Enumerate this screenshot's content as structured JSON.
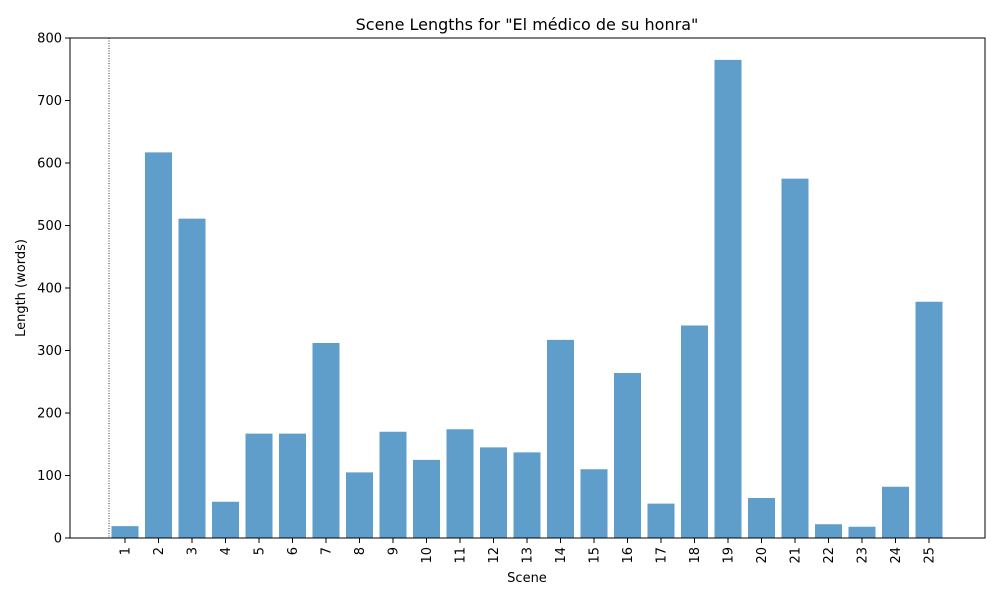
{
  "chart_data": {
    "type": "bar",
    "title": "Scene Lengths for \"El médico de su honra\"",
    "xlabel": "Scene",
    "ylabel": "Length (words)",
    "categories": [
      "1",
      "2",
      "3",
      "4",
      "5",
      "6",
      "7",
      "8",
      "9",
      "10",
      "11",
      "12",
      "13",
      "14",
      "15",
      "16",
      "17",
      "18",
      "19",
      "20",
      "21",
      "22",
      "23",
      "24",
      "25"
    ],
    "values": [
      19,
      617,
      511,
      58,
      167,
      167,
      312,
      105,
      170,
      125,
      174,
      145,
      137,
      317,
      110,
      264,
      55,
      340,
      765,
      64,
      575,
      22,
      18,
      82,
      378
    ],
    "ylim": [
      0,
      800
    ],
    "yticks": [
      0,
      100,
      200,
      300,
      400,
      500,
      600,
      700,
      800
    ],
    "bar_color": "#5f9ecb",
    "grid": false,
    "legend": "none",
    "annotations": [
      {
        "type": "vertical-dotted-line",
        "x_position": "left of scene 1"
      }
    ]
  }
}
